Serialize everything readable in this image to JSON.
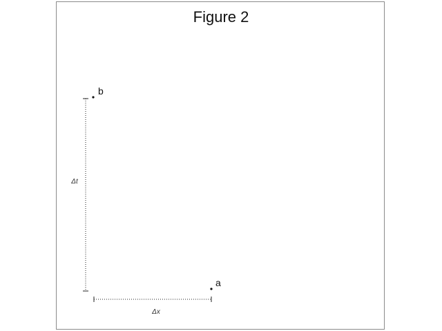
{
  "figure": {
    "title": "Figure 2"
  },
  "points": {
    "a": {
      "label": "a"
    },
    "b": {
      "label": "b"
    }
  },
  "intervals": {
    "delta_x": {
      "label": "Δx"
    },
    "delta_t": {
      "label": "Δt"
    }
  }
}
